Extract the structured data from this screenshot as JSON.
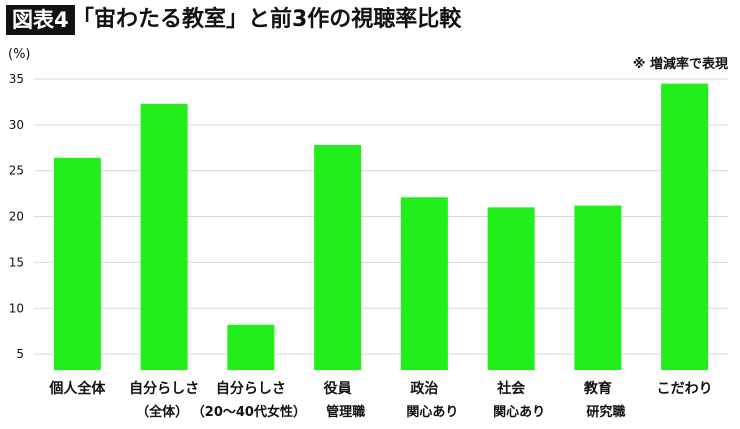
{
  "header": {
    "figure_tag": "図表4",
    "title": "「宙わたる教室」と前3作の視聴率比較"
  },
  "note": "※ 増減率で表現",
  "chart_data": {
    "type": "bar",
    "unit_label": "(%)",
    "categories": [
      {
        "line1": "個人全体",
        "line2": ""
      },
      {
        "line1": "自分らしさ",
        "line2": "（全体）"
      },
      {
        "line1": "自分らしさ",
        "line2": "（20〜40代女性）"
      },
      {
        "line1": "役員",
        "line2": "管理職"
      },
      {
        "line1": "政治",
        "line2": "関心あり"
      },
      {
        "line1": "社会",
        "line2": "関心あり"
      },
      {
        "line1": "教育",
        "line2": "研究職"
      },
      {
        "line1": "こだわり",
        "line2": ""
      }
    ],
    "values": [
      26.4,
      32.3,
      8.2,
      27.8,
      22.1,
      21.0,
      21.2,
      34.5
    ],
    "ylim": [
      2,
      35
    ],
    "yticks": [
      5,
      10,
      15,
      20,
      25,
      30,
      35
    ],
    "grid": true,
    "colors": {
      "bar": "#22ee1c",
      "grid": "#d9d9d9"
    }
  }
}
